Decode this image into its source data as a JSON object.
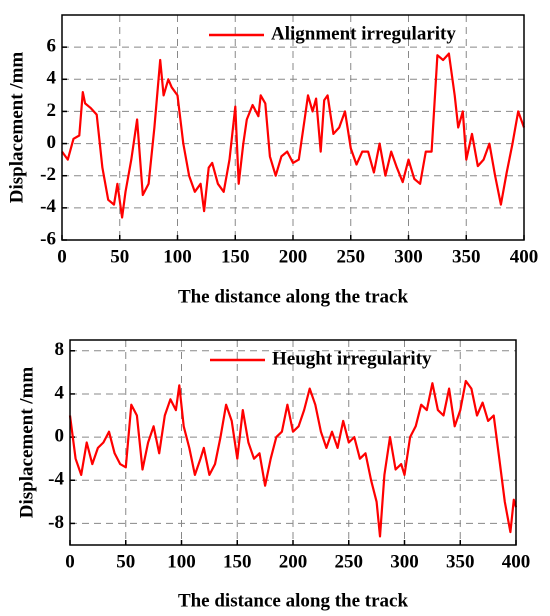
{
  "chart_data": [
    {
      "type": "line",
      "x_label": "The distance along the track",
      "y_label": "Displacement /mm",
      "xlim": [
        0,
        400
      ],
      "xticks": [
        0,
        50,
        100,
        150,
        200,
        250,
        300,
        350,
        400
      ],
      "ylim": [
        -6,
        8
      ],
      "yticks": [
        -6,
        -4,
        -2,
        0,
        2,
        4,
        6
      ],
      "grid": true,
      "legend": "upper right",
      "x": [
        0,
        5,
        10,
        15,
        18,
        20,
        25,
        30,
        35,
        40,
        45,
        48,
        52,
        55,
        60,
        65,
        70,
        75,
        80,
        85,
        88,
        92,
        95,
        100,
        105,
        110,
        115,
        120,
        123,
        127,
        130,
        135,
        140,
        145,
        150,
        153,
        157,
        160,
        165,
        170,
        172,
        176,
        180,
        185,
        190,
        195,
        200,
        205,
        210,
        213,
        217,
        220,
        224,
        227,
        230,
        235,
        240,
        245,
        250,
        255,
        260,
        265,
        270,
        275,
        280,
        285,
        290,
        295,
        300,
        305,
        310,
        315,
        320,
        325,
        330,
        335,
        340,
        343,
        347,
        350,
        355,
        360,
        365,
        370,
        375,
        380,
        385,
        390,
        395,
        400
      ],
      "series": [
        {
          "name": "Alignment irregularity",
          "color": "#ff0000",
          "values": [
            -0.5,
            -1,
            0.3,
            0.5,
            3.2,
            2.5,
            2.2,
            1.8,
            -1.5,
            -3.5,
            -3.8,
            -2.5,
            -4.6,
            -3,
            -1,
            1.5,
            -3.2,
            -2.5,
            1,
            5.2,
            3,
            4,
            3.5,
            3,
            0,
            -2,
            -3,
            -2.5,
            -4.2,
            -1.5,
            -1.2,
            -2.5,
            -3,
            -1,
            2.3,
            -2.5,
            0,
            1.5,
            2.4,
            1.7,
            3,
            2.5,
            -0.8,
            -2,
            -0.8,
            -0.5,
            -1.2,
            -1,
            1.5,
            3,
            2,
            2.8,
            -0.5,
            2.7,
            3,
            0.6,
            1,
            2,
            -0.3,
            -1.3,
            -0.5,
            -0.5,
            -1.8,
            0,
            -2,
            -0.5,
            -1.5,
            -2.4,
            -1,
            -2.2,
            -2.5,
            -0.5,
            -0.5,
            5.5,
            5.2,
            5.6,
            3,
            1,
            2,
            -1,
            0.6,
            -1.4,
            -1,
            0,
            -2,
            -3.8,
            -1.8,
            0,
            2,
            1
          ]
        }
      ]
    },
    {
      "type": "line",
      "x_label": "The distance along the track",
      "y_label": "Displacement /mm",
      "xlim": [
        0,
        400
      ],
      "xticks": [
        0,
        50,
        100,
        150,
        200,
        250,
        300,
        350,
        400
      ],
      "ylim": [
        -10,
        9
      ],
      "yticks": [
        -8,
        -4,
        0,
        4,
        8
      ],
      "grid": true,
      "legend": "upper center",
      "x": [
        0,
        5,
        10,
        15,
        20,
        25,
        30,
        35,
        40,
        45,
        50,
        55,
        60,
        65,
        70,
        75,
        80,
        85,
        90,
        95,
        98,
        102,
        107,
        112,
        117,
        120,
        125,
        130,
        135,
        140,
        145,
        150,
        155,
        160,
        165,
        170,
        175,
        180,
        185,
        190,
        195,
        200,
        205,
        210,
        215,
        220,
        225,
        230,
        235,
        240,
        245,
        250,
        255,
        260,
        265,
        270,
        275,
        278,
        282,
        287,
        292,
        297,
        300,
        305,
        310,
        315,
        320,
        325,
        330,
        335,
        340,
        345,
        350,
        355,
        360,
        365,
        370,
        375,
        380,
        385,
        390,
        395,
        398,
        400
      ],
      "series": [
        {
          "name": "Heught irregularity",
          "color": "#ff0000",
          "values": [
            2,
            -2,
            -3.5,
            -0.5,
            -2.5,
            -1,
            -0.5,
            0.5,
            -1.5,
            -2.5,
            -2.8,
            3,
            2,
            -3,
            -0.5,
            1,
            -1.5,
            2,
            3.5,
            2.5,
            4.8,
            1,
            -1,
            -3.5,
            -2,
            -1,
            -3.5,
            -2.5,
            0,
            3,
            1.5,
            -2,
            2.5,
            -0.5,
            -2,
            -1.5,
            -4.5,
            -2,
            0,
            0.5,
            3,
            0.5,
            1,
            2.5,
            4.5,
            3,
            0.5,
            -1,
            0.5,
            -1,
            1.5,
            -0.5,
            0,
            -2,
            -1.5,
            -4,
            -6,
            -9.2,
            -3.5,
            0,
            -3,
            -2.5,
            -3.5,
            0,
            1,
            3,
            2.5,
            5,
            2.5,
            2,
            4.5,
            1,
            2.5,
            5.2,
            4.5,
            2,
            3.2,
            1.5,
            2,
            -2,
            -6,
            -8.8,
            -5.8,
            -6.5
          ]
        }
      ]
    }
  ]
}
